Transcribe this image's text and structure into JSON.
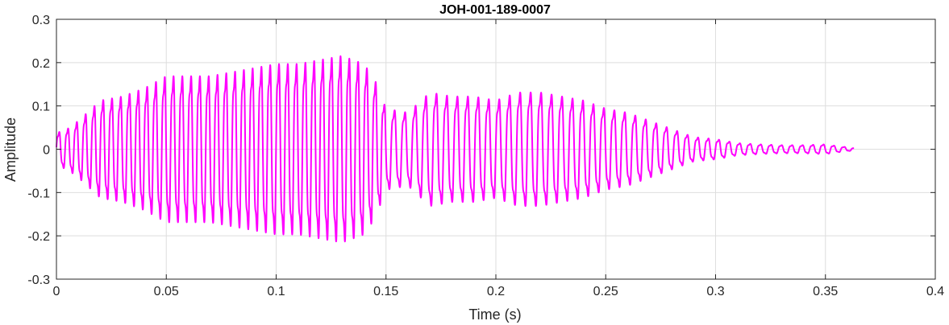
{
  "chart_data": {
    "type": "line",
    "title": "JOH-001-189-0007",
    "xlabel": "Time (s)",
    "ylabel": "Amplitude",
    "xlim": [
      0,
      0.4
    ],
    "ylim": [
      -0.3,
      0.3
    ],
    "xticks": [
      0,
      0.05,
      0.1,
      0.15,
      0.2,
      0.25,
      0.3,
      0.35,
      0.4
    ],
    "xtick_labels": [
      "0",
      "0.05",
      "0.1",
      "0.15",
      "0.2",
      "0.25",
      "0.3",
      "0.35",
      "0.4"
    ],
    "yticks": [
      0.3,
      0.2,
      0.1,
      0,
      -0.1,
      -0.2,
      -0.3
    ],
    "ytick_labels": [
      "0.3",
      "0.2",
      "0.1",
      "0",
      "-0.1",
      "-0.2",
      "-0.3"
    ],
    "grid": true,
    "line_color": "#ff00ff",
    "series": [
      {
        "x": [
          0,
          0.005,
          0.01,
          0.02,
          0.03,
          0.04,
          0.05,
          0.06,
          0.07,
          0.08,
          0.09,
          0.1,
          0.11,
          0.12,
          0.13,
          0.14,
          0.145,
          0.15,
          0.16,
          0.17,
          0.18,
          0.19,
          0.2,
          0.21,
          0.22,
          0.23,
          0.24,
          0.25,
          0.26,
          0.27,
          0.28,
          0.29,
          0.3,
          0.31,
          0.32,
          0.33,
          0.34,
          0.35,
          0.355,
          0.363
        ],
        "envelope": [
          0.04,
          0.05,
          0.07,
          0.12,
          0.13,
          0.15,
          0.18,
          0.18,
          0.18,
          0.19,
          0.2,
          0.21,
          0.21,
          0.22,
          0.23,
          0.21,
          0.17,
          0.1,
          0.09,
          0.14,
          0.13,
          0.13,
          0.12,
          0.14,
          0.14,
          0.13,
          0.12,
          0.1,
          0.09,
          0.07,
          0.05,
          0.03,
          0.025,
          0.015,
          0.012,
          0.01,
          0.01,
          0.012,
          0.008,
          0.003
        ]
      }
    ]
  }
}
